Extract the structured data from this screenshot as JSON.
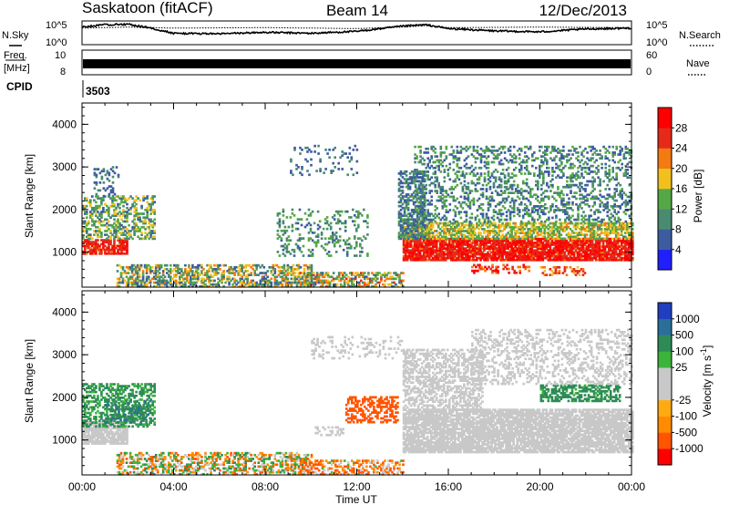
{
  "header": {
    "station": "Saskatoon (fitACF)",
    "beam": "Beam 14",
    "date": "12/Dec/2013"
  },
  "strips": {
    "nsky_label": "N.Sky",
    "nsearch_label": "N.Search",
    "noise_ticks": [
      "10^5",
      "10^0"
    ],
    "freq_label_1": "Freq.",
    "freq_label_2": "[MHz]",
    "freq_ticks": [
      "10",
      "8"
    ],
    "nave_label": "Nave",
    "nave_ticks": [
      "60",
      "0"
    ],
    "cpid_label": "CPID",
    "cpid_value": "3503"
  },
  "colors": {
    "power": [
      "#2020ff",
      "#3c5ca0",
      "#4a8a70",
      "#55a845",
      "#f2c01e",
      "#f47a12",
      "#e52a1a",
      "#ff0000"
    ],
    "velocity": [
      "#ff0000",
      "#ff5500",
      "#ff8c00",
      "#ffaa10",
      "#c8c8c8",
      "#c8c8c8",
      "#3cb43c",
      "#2e8b57",
      "#2a6f9a",
      "#1f3fbf"
    ],
    "velocity_gray": "#c8c8c8"
  },
  "chart_data": [
    {
      "type": "line",
      "name": "noise-strip",
      "series": [
        {
          "name": "N.Sky",
          "style": "solid",
          "x": [
            0,
            1,
            2,
            3,
            4,
            6,
            8,
            10,
            12,
            14,
            15,
            16,
            18,
            20,
            22,
            24
          ],
          "values": [
            3.7,
            4.2,
            4.3,
            3.5,
            2.4,
            2.3,
            2.6,
            2.4,
            2.8,
            3.9,
            4.2,
            3.4,
            2.9,
            2.7,
            3.3,
            3.5
          ]
        },
        {
          "name": "N.Search",
          "style": "dotted",
          "x": [
            0,
            2,
            4,
            8,
            12,
            14,
            15,
            16,
            20,
            24
          ],
          "values": [
            3.5,
            3.7,
            3.5,
            3.6,
            3.4,
            3.7,
            4.0,
            3.6,
            3.7,
            3.6
          ]
        }
      ],
      "ylim": [
        0,
        5
      ],
      "yticks": [
        "10^0",
        "10^5"
      ]
    },
    {
      "type": "line",
      "name": "freq-nave-strip",
      "series": [
        {
          "name": "Freq.",
          "units": "MHz",
          "x": [
            0,
            24
          ],
          "values": [
            9.9,
            9.9
          ]
        }
      ],
      "ylim": [
        8,
        10
      ],
      "right_axis": {
        "label": "Nave",
        "ylim": [
          0,
          60
        ]
      }
    },
    {
      "type": "heatmap",
      "name": "power",
      "xlabel": "Time UT",
      "ylabel": "Slant Range [km]",
      "colorbar_label": "Power [dB]",
      "xlim": [
        0,
        24
      ],
      "ylim": [
        180,
        4500
      ],
      "xticks": [
        "00:00",
        "04:00",
        "08:00",
        "12:00",
        "16:00",
        "20:00",
        "00:00"
      ],
      "yticks": [
        1000,
        2000,
        3000,
        4000
      ],
      "colorbar_ticks": [
        4,
        8,
        12,
        16,
        20,
        24,
        28
      ],
      "colorbar_range": [
        0,
        30
      ],
      "regions": [
        {
          "t": [
            0.0,
            2.0
          ],
          "r": [
            950,
            1300
          ],
          "p": [
            22,
            28
          ],
          "d": 0.85
        },
        {
          "t": [
            0.0,
            3.2
          ],
          "r": [
            1300,
            2300
          ],
          "p": [
            6,
            18
          ],
          "d": 0.45
        },
        {
          "t": [
            0.5,
            1.6
          ],
          "r": [
            2300,
            3000
          ],
          "p": [
            4,
            10
          ],
          "d": 0.25
        },
        {
          "t": [
            1.5,
            10.0
          ],
          "r": [
            180,
            700
          ],
          "p": [
            4,
            22
          ],
          "d": 0.55
        },
        {
          "t": [
            9.5,
            14.0
          ],
          "r": [
            180,
            500
          ],
          "p": [
            6,
            24
          ],
          "d": 0.55
        },
        {
          "t": [
            8.5,
            12.5
          ],
          "r": [
            900,
            2000
          ],
          "p": [
            6,
            14
          ],
          "d": 0.2
        },
        {
          "t": [
            9.0,
            12.0
          ],
          "r": [
            2800,
            3500
          ],
          "p": [
            4,
            10
          ],
          "d": 0.12
        },
        {
          "t": [
            14.0,
            24.0
          ],
          "r": [
            800,
            1300
          ],
          "p": [
            22,
            30
          ],
          "d": 0.9
        },
        {
          "t": [
            14.0,
            24.0
          ],
          "r": [
            1300,
            1700
          ],
          "p": [
            10,
            20
          ],
          "d": 0.65
        },
        {
          "t": [
            13.8,
            15.0
          ],
          "r": [
            1300,
            2900
          ],
          "p": [
            4,
            12
          ],
          "d": 0.55
        },
        {
          "t": [
            14.5,
            24.0
          ],
          "r": [
            1700,
            3500
          ],
          "p": [
            4,
            14
          ],
          "d": 0.3
        },
        {
          "t": [
            17.0,
            19.5
          ],
          "r": [
            500,
            700
          ],
          "p": [
            20,
            28
          ],
          "d": 0.4
        },
        {
          "t": [
            20.0,
            22.0
          ],
          "r": [
            450,
            650
          ],
          "p": [
            18,
            26
          ],
          "d": 0.35
        }
      ]
    },
    {
      "type": "heatmap",
      "name": "velocity",
      "xlabel": "Time UT",
      "ylabel": "Slant Range [km]",
      "colorbar_label": "Velocity [m s^-1]",
      "xlim": [
        0,
        24
      ],
      "ylim": [
        180,
        4500
      ],
      "xticks": [
        "00:00",
        "04:00",
        "08:00",
        "12:00",
        "16:00",
        "20:00",
        "00:00"
      ],
      "yticks": [
        1000,
        2000,
        3000,
        4000
      ],
      "colorbar_ticks": [
        1000,
        500,
        100,
        25,
        -25,
        -100,
        -500,
        -1000
      ],
      "regions": [
        {
          "t": [
            0.0,
            2.0
          ],
          "r": [
            900,
            1400
          ],
          "v": [
            -25,
            25
          ],
          "d": 0.85
        },
        {
          "t": [
            0.0,
            3.2
          ],
          "r": [
            1300,
            2300
          ],
          "v": [
            25,
            300
          ],
          "d": 0.45
        },
        {
          "t": [
            1.0,
            3.0
          ],
          "r": [
            1400,
            1900
          ],
          "v": [
            200,
            600
          ],
          "d": 0.4
        },
        {
          "t": [
            1.5,
            10.0
          ],
          "r": [
            180,
            700
          ],
          "v": [
            -150,
            150
          ],
          "d": 0.45
        },
        {
          "t": [
            9.5,
            14.0
          ],
          "r": [
            180,
            500
          ],
          "v": [
            -200,
            50
          ],
          "d": 0.45
        },
        {
          "t": [
            10.0,
            11.5
          ],
          "r": [
            1100,
            1300
          ],
          "v": [
            -25,
            25
          ],
          "d": 0.4
        },
        {
          "t": [
            11.5,
            13.8
          ],
          "r": [
            1400,
            2000
          ],
          "v": [
            -300,
            -120
          ],
          "d": 0.5
        },
        {
          "t": [
            14.0,
            24.0
          ],
          "r": [
            700,
            1700
          ],
          "v": [
            -25,
            25
          ],
          "d": 0.85
        },
        {
          "t": [
            14.0,
            17.5
          ],
          "r": [
            1700,
            3100
          ],
          "v": [
            -25,
            25
          ],
          "d": 0.5
        },
        {
          "t": [
            20.0,
            23.5
          ],
          "r": [
            1900,
            2300
          ],
          "v": [
            60,
            300
          ],
          "d": 0.55
        },
        {
          "t": [
            17.0,
            24.0
          ],
          "r": [
            2300,
            3600
          ],
          "v": [
            -25,
            25
          ],
          "d": 0.3
        },
        {
          "t": [
            10.0,
            14.0
          ],
          "r": [
            2900,
            3400
          ],
          "v": [
            -25,
            25
          ],
          "d": 0.2
        }
      ]
    }
  ]
}
